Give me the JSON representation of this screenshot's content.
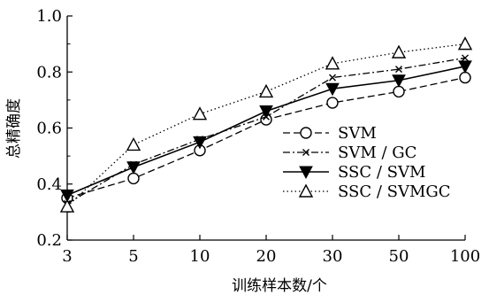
{
  "chart_data": {
    "type": "line",
    "title": "",
    "xlabel": "训练样本数/个",
    "ylabel": "总精确度",
    "categories": [
      "3",
      "5",
      "10",
      "20",
      "30",
      "50",
      "100"
    ],
    "ylim": [
      0.2,
      1.0
    ],
    "yticks": [
      "0.2",
      "0.4",
      "0.6",
      "0.8",
      "1.0"
    ],
    "legend_position": "lower-right",
    "grid": false,
    "series": [
      {
        "name": "SVM",
        "marker": "circle",
        "line": "dashed",
        "values": [
          0.35,
          0.42,
          0.52,
          0.63,
          0.69,
          0.73,
          0.78
        ]
      },
      {
        "name": "SVM / GC",
        "marker": "x",
        "line": "dashdot",
        "values": [
          0.33,
          0.47,
          0.56,
          0.64,
          0.78,
          0.81,
          0.85
        ]
      },
      {
        "name": "SSC / SVM",
        "marker": "triangle-down",
        "line": "solid",
        "values": [
          0.36,
          0.46,
          0.55,
          0.66,
          0.74,
          0.77,
          0.82
        ]
      },
      {
        "name": "SSC / SVMGC",
        "marker": "triangle-up",
        "line": "dotted",
        "values": [
          0.32,
          0.54,
          0.65,
          0.73,
          0.83,
          0.87,
          0.9
        ]
      }
    ]
  }
}
